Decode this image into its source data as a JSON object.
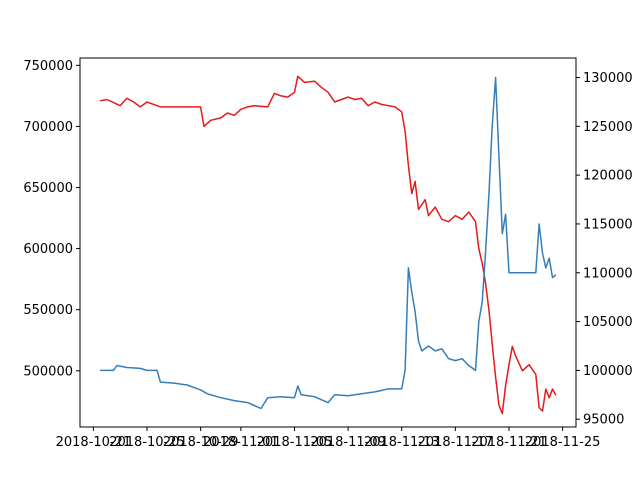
{
  "chart_data": {
    "type": "line",
    "title": "",
    "xlabel": "",
    "ylabel_left": "",
    "ylabel_right": "",
    "grid": false,
    "legend": "none",
    "xlim": [
      "2018-10-20",
      "2018-11-26"
    ],
    "x_ticks": [
      "2018-10-21",
      "2018-10-25",
      "2018-10-29",
      "2018-11-01",
      "2018-11-05",
      "2018-11-09",
      "2018-11-13",
      "2018-11-17",
      "2018-11-21",
      "2018-11-25"
    ],
    "ylim_left": [
      454000,
      756000
    ],
    "y_ticks_left": [
      500000,
      550000,
      600000,
      650000,
      700000,
      750000
    ],
    "ylim_right": [
      94200,
      132000
    ],
    "y_ticks_right": [
      95000,
      100000,
      105000,
      110000,
      115000,
      120000,
      125000,
      130000
    ],
    "series": [
      {
        "axis": "left",
        "color": "#e41a1c",
        "points": [
          [
            "2018-10-21T12:00",
            721000
          ],
          [
            "2018-10-22T00:00",
            722000
          ],
          [
            "2018-10-22T12:00",
            719500
          ],
          [
            "2018-10-23T00:00",
            717000
          ],
          [
            "2018-10-23T12:00",
            723000
          ],
          [
            "2018-10-24T00:00",
            720000
          ],
          [
            "2018-10-24T12:00",
            716000
          ],
          [
            "2018-10-25T00:00",
            720000
          ],
          [
            "2018-10-25T12:00",
            718000
          ],
          [
            "2018-10-26T00:00",
            716000
          ],
          [
            "2018-10-27T00:00",
            716000
          ],
          [
            "2018-10-28T00:00",
            716000
          ],
          [
            "2018-10-29T00:00",
            716000
          ],
          [
            "2018-10-29T06:00",
            700000
          ],
          [
            "2018-10-29T18:00",
            705000
          ],
          [
            "2018-10-30T12:00",
            707000
          ],
          [
            "2018-10-31T00:00",
            711000
          ],
          [
            "2018-10-31T12:00",
            709000
          ],
          [
            "2018-11-01T00:00",
            714000
          ],
          [
            "2018-11-01T12:00",
            716000
          ],
          [
            "2018-11-02T00:00",
            717000
          ],
          [
            "2018-11-03T00:00",
            716000
          ],
          [
            "2018-11-03T12:00",
            727000
          ],
          [
            "2018-11-04T00:00",
            725000
          ],
          [
            "2018-11-04T12:00",
            724000
          ],
          [
            "2018-11-05T00:00",
            728000
          ],
          [
            "2018-11-05T06:00",
            741000
          ],
          [
            "2018-11-05T18:00",
            736000
          ],
          [
            "2018-11-06T12:00",
            737000
          ],
          [
            "2018-11-07T00:00",
            732000
          ],
          [
            "2018-11-07T12:00",
            728000
          ],
          [
            "2018-11-08T00:00",
            720000
          ],
          [
            "2018-11-08T12:00",
            722000
          ],
          [
            "2018-11-09T00:00",
            724000
          ],
          [
            "2018-11-09T12:00",
            722000
          ],
          [
            "2018-11-10T00:00",
            723000
          ],
          [
            "2018-11-10T12:00",
            717000
          ],
          [
            "2018-11-11T00:00",
            720000
          ],
          [
            "2018-11-11T12:00",
            718000
          ],
          [
            "2018-11-12T00:00",
            717000
          ],
          [
            "2018-11-12T12:00",
            716000
          ],
          [
            "2018-11-13T00:00",
            712000
          ],
          [
            "2018-11-13T06:00",
            696000
          ],
          [
            "2018-11-13T12:00",
            668000
          ],
          [
            "2018-11-13T18:00",
            645000
          ],
          [
            "2018-11-14T00:00",
            655000
          ],
          [
            "2018-11-14T06:00",
            632000
          ],
          [
            "2018-11-14T18:00",
            640000
          ],
          [
            "2018-11-15T00:00",
            627000
          ],
          [
            "2018-11-15T12:00",
            634000
          ],
          [
            "2018-11-16T00:00",
            624000
          ],
          [
            "2018-11-16T12:00",
            622000
          ],
          [
            "2018-11-17T00:00",
            627000
          ],
          [
            "2018-11-17T12:00",
            624000
          ],
          [
            "2018-11-18T00:00",
            630000
          ],
          [
            "2018-11-18T12:00",
            622000
          ],
          [
            "2018-11-18T18:00",
            600000
          ],
          [
            "2018-11-19T00:00",
            588000
          ],
          [
            "2018-11-19T06:00",
            572000
          ],
          [
            "2018-11-19T12:00",
            550000
          ],
          [
            "2018-11-19T18:00",
            522000
          ],
          [
            "2018-11-20T00:00",
            495000
          ],
          [
            "2018-11-20T06:00",
            472000
          ],
          [
            "2018-11-20T12:00",
            465000
          ],
          [
            "2018-11-20T18:00",
            488000
          ],
          [
            "2018-11-21T00:00",
            505000
          ],
          [
            "2018-11-21T06:00",
            520000
          ],
          [
            "2018-11-21T12:00",
            512000
          ],
          [
            "2018-11-22T00:00",
            500000
          ],
          [
            "2018-11-22T12:00",
            505000
          ],
          [
            "2018-11-23T00:00",
            497000
          ],
          [
            "2018-11-23T06:00",
            470000
          ],
          [
            "2018-11-23T12:00",
            467000
          ],
          [
            "2018-11-23T18:00",
            485000
          ],
          [
            "2018-11-24T00:00",
            478000
          ],
          [
            "2018-11-24T06:00",
            485000
          ],
          [
            "2018-11-24T12:00",
            480000
          ]
        ]
      },
      {
        "axis": "right",
        "color": "#377eb8",
        "points": [
          [
            "2018-10-21T12:00",
            100000
          ],
          [
            "2018-10-22T12:00",
            100000
          ],
          [
            "2018-10-22T18:00",
            100500
          ],
          [
            "2018-10-23T12:00",
            100300
          ],
          [
            "2018-10-24T12:00",
            100200
          ],
          [
            "2018-10-25T00:00",
            100000
          ],
          [
            "2018-10-25T18:00",
            100000
          ],
          [
            "2018-10-26T00:00",
            98800
          ],
          [
            "2018-10-27T00:00",
            98700
          ],
          [
            "2018-10-28T00:00",
            98500
          ],
          [
            "2018-10-29T00:00",
            98000
          ],
          [
            "2018-10-29T12:00",
            97600
          ],
          [
            "2018-10-30T12:00",
            97200
          ],
          [
            "2018-10-31T12:00",
            96900
          ],
          [
            "2018-11-01T12:00",
            96700
          ],
          [
            "2018-11-02T00:00",
            96400
          ],
          [
            "2018-11-02T12:00",
            96100
          ],
          [
            "2018-11-03T00:00",
            97200
          ],
          [
            "2018-11-04T00:00",
            97300
          ],
          [
            "2018-11-05T00:00",
            97200
          ],
          [
            "2018-11-05T06:00",
            98400
          ],
          [
            "2018-11-05T12:00",
            97500
          ],
          [
            "2018-11-06T12:00",
            97300
          ],
          [
            "2018-11-07T00:00",
            97000
          ],
          [
            "2018-11-07T12:00",
            96700
          ],
          [
            "2018-11-08T00:00",
            97500
          ],
          [
            "2018-11-09T00:00",
            97400
          ],
          [
            "2018-11-10T00:00",
            97600
          ],
          [
            "2018-11-11T00:00",
            97800
          ],
          [
            "2018-11-12T00:00",
            98100
          ],
          [
            "2018-11-13T00:00",
            98100
          ],
          [
            "2018-11-13T06:00",
            100000
          ],
          [
            "2018-11-13T12:00",
            110500
          ],
          [
            "2018-11-13T18:00",
            108000
          ],
          [
            "2018-11-14T00:00",
            106000
          ],
          [
            "2018-11-14T06:00",
            103000
          ],
          [
            "2018-11-14T12:00",
            102000
          ],
          [
            "2018-11-15T00:00",
            102500
          ],
          [
            "2018-11-15T12:00",
            102000
          ],
          [
            "2018-11-16T00:00",
            102200
          ],
          [
            "2018-11-16T12:00",
            101200
          ],
          [
            "2018-11-17T00:00",
            101000
          ],
          [
            "2018-11-17T12:00",
            101200
          ],
          [
            "2018-11-18T00:00",
            100500
          ],
          [
            "2018-11-18T12:00",
            100000
          ],
          [
            "2018-11-18T18:00",
            105000
          ],
          [
            "2018-11-19T00:00",
            107000
          ],
          [
            "2018-11-19T06:00",
            112000
          ],
          [
            "2018-11-19T12:00",
            118000
          ],
          [
            "2018-11-19T18:00",
            125000
          ],
          [
            "2018-11-20T00:00",
            130000
          ],
          [
            "2018-11-20T06:00",
            122000
          ],
          [
            "2018-11-20T12:00",
            114000
          ],
          [
            "2018-11-20T18:00",
            116000
          ],
          [
            "2018-11-21T00:00",
            110000
          ],
          [
            "2018-11-21T12:00",
            110000
          ],
          [
            "2018-11-22T00:00",
            110000
          ],
          [
            "2018-11-22T12:00",
            110000
          ],
          [
            "2018-11-23T00:00",
            110000
          ],
          [
            "2018-11-23T06:00",
            115000
          ],
          [
            "2018-11-23T12:00",
            112000
          ],
          [
            "2018-11-23T18:00",
            110500
          ],
          [
            "2018-11-24T00:00",
            111500
          ],
          [
            "2018-11-24T06:00",
            109500
          ],
          [
            "2018-11-24T12:00",
            109800
          ]
        ]
      }
    ]
  }
}
